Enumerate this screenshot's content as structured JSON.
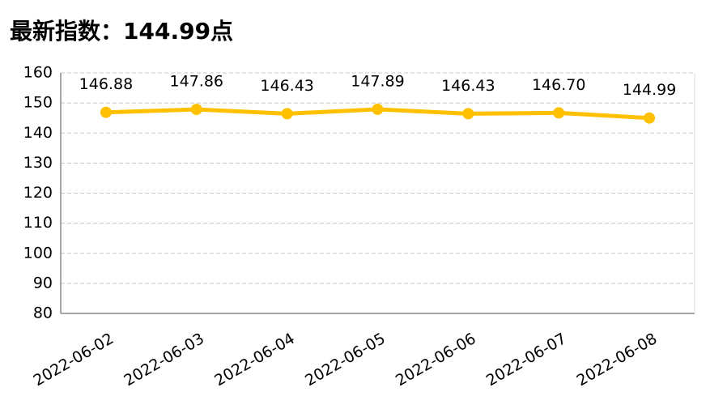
{
  "chart_data": {
    "type": "line",
    "title": "最新指数：144.99点",
    "categories": [
      "2022-06-02",
      "2022-06-03",
      "2022-06-04",
      "2022-06-05",
      "2022-06-06",
      "2022-06-07",
      "2022-06-08"
    ],
    "series": [
      {
        "color": "#FFC000",
        "values": [
          146.88,
          147.86,
          146.43,
          147.89,
          146.43,
          146.7,
          144.99
        ],
        "value_labels": [
          "146.88",
          "147.86",
          "146.43",
          "147.89",
          "146.43",
          "146.70",
          "144.99"
        ]
      }
    ],
    "ylim": [
      80,
      160
    ],
    "yticks": [
      80,
      90,
      100,
      110,
      120,
      130,
      140,
      150,
      160
    ],
    "grid": true
  }
}
